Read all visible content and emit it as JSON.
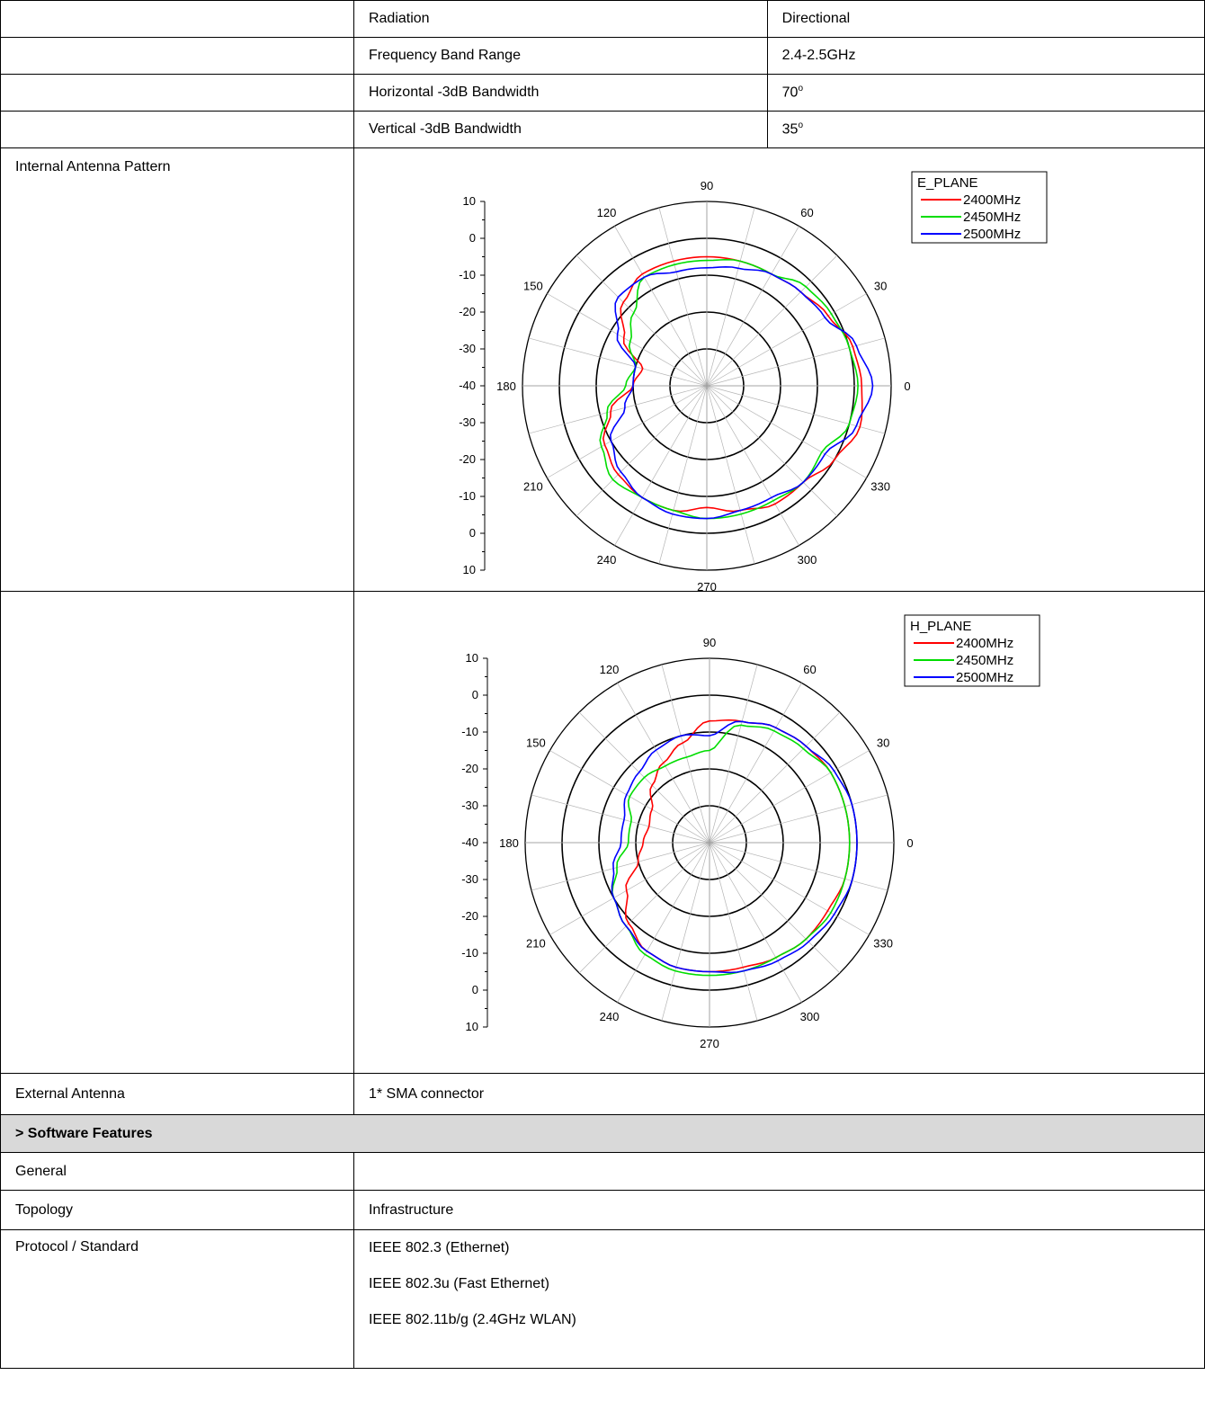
{
  "specs": [
    {
      "label": "",
      "name": "Radiation",
      "value": "Directional"
    },
    {
      "label": "",
      "name": "Frequency Band Range",
      "value": "2.4-2.5GHz"
    },
    {
      "label": "",
      "name": "Horizontal -3dB Bandwidth",
      "value": "70",
      "unit": "o"
    },
    {
      "label": "",
      "name": "Vertical -3dB Bandwidth",
      "value": "35",
      "unit": "o"
    }
  ],
  "internal_pattern_label": "Internal Antenna Pattern",
  "chart_data": [
    {
      "type": "polar",
      "legend_title": "E_PLANE",
      "legend_position": "top-right",
      "angle_labels": [
        "0",
        "30",
        "60",
        "90",
        "120",
        "150",
        "180",
        "210",
        "240",
        "270",
        "300",
        "330"
      ],
      "radial_ticks": [
        "10",
        "0",
        "-10",
        "-20",
        "-30",
        "-40",
        "-30",
        "-20",
        "-10",
        "0",
        "10"
      ],
      "rlim": [
        -40,
        10
      ],
      "grid": true,
      "series": [
        {
          "name": "2400MHz",
          "color": "#ff0000",
          "angles": [
            0,
            15,
            30,
            45,
            60,
            75,
            90,
            105,
            120,
            135,
            150,
            165,
            180,
            195,
            210,
            225,
            240,
            255,
            270,
            285,
            300,
            315,
            330,
            345
          ],
          "values": [
            2,
            1,
            -2,
            -4,
            -5,
            -5,
            -5,
            -5,
            -5,
            -8,
            -14,
            -22,
            -20,
            -13,
            -8,
            -6,
            -5,
            -5,
            -7,
            -5,
            -3,
            -3,
            0,
            3
          ]
        },
        {
          "name": "2450MHz",
          "color": "#00dd00",
          "angles": [
            0,
            15,
            30,
            45,
            60,
            75,
            90,
            105,
            120,
            135,
            150,
            165,
            180,
            195,
            210,
            225,
            240,
            255,
            270,
            285,
            300,
            315,
            330,
            345
          ],
          "values": [
            1,
            0,
            -1,
            -2,
            -5,
            -5,
            -6,
            -6,
            -6,
            -12,
            -16,
            -20,
            -18,
            -12,
            -7,
            -4,
            -5,
            -5,
            -4,
            -4,
            -4,
            -3,
            -4,
            0
          ]
        },
        {
          "name": "2500MHz",
          "color": "#0000ff",
          "angles": [
            0,
            15,
            30,
            45,
            60,
            75,
            90,
            105,
            120,
            135,
            150,
            165,
            180,
            195,
            210,
            225,
            240,
            255,
            270,
            285,
            300,
            315,
            330,
            345
          ],
          "values": [
            5,
            2,
            -3,
            -4,
            -5,
            -7,
            -8,
            -8,
            -6,
            -6,
            -12,
            -20,
            -20,
            -17,
            -10,
            -7,
            -5,
            -4,
            -4,
            -5,
            -5,
            -3,
            -3,
            2
          ]
        }
      ]
    },
    {
      "type": "polar",
      "legend_title": "H_PLANE",
      "legend_position": "top-right",
      "angle_labels": [
        "0",
        "30",
        "60",
        "90",
        "120",
        "150",
        "180",
        "210",
        "240",
        "270",
        "300",
        "330"
      ],
      "radial_ticks": [
        "10",
        "0",
        "-10",
        "-20",
        "-30",
        "-40",
        "-30",
        "-20",
        "-10",
        "0",
        "10"
      ],
      "rlim": [
        -40,
        10
      ],
      "grid": true,
      "series": [
        {
          "name": "2400MHz",
          "color": "#ff0000",
          "angles": [
            0,
            15,
            30,
            45,
            60,
            75,
            90,
            105,
            120,
            135,
            150,
            165,
            180,
            195,
            210,
            225,
            240,
            255,
            270,
            285,
            300,
            315,
            330,
            345
          ],
          "values": [
            -2,
            -2,
            -2,
            -3,
            -4,
            -6,
            -7,
            -12,
            -15,
            -18,
            -22,
            -23,
            -22,
            -20,
            -14,
            -9,
            -6,
            -5,
            -5,
            -5,
            -4,
            -3,
            -3,
            -2
          ]
        },
        {
          "name": "2450MHz",
          "color": "#00dd00",
          "angles": [
            0,
            15,
            30,
            45,
            60,
            75,
            90,
            105,
            120,
            135,
            150,
            165,
            180,
            195,
            210,
            225,
            240,
            255,
            270,
            285,
            300,
            315,
            330,
            345
          ],
          "values": [
            -2,
            -2,
            -2,
            -4,
            -5,
            -7,
            -15,
            -16,
            -16,
            -15,
            -15,
            -18,
            -18,
            -14,
            -10,
            -8,
            -5,
            -4,
            -4,
            -4,
            -4,
            -3,
            -2,
            -2
          ]
        },
        {
          "name": "2500MHz",
          "color": "#0000ff",
          "angles": [
            0,
            15,
            30,
            45,
            60,
            75,
            90,
            105,
            120,
            135,
            150,
            165,
            180,
            195,
            210,
            225,
            240,
            255,
            270,
            285,
            300,
            315,
            330,
            345
          ],
          "values": [
            0,
            0,
            -1,
            -3,
            -4,
            -6,
            -11,
            -10,
            -11,
            -13,
            -14,
            -16,
            -16,
            -13,
            -10,
            -8,
            -6,
            -5,
            -5,
            -4,
            -3,
            -2,
            -1,
            0
          ]
        }
      ]
    }
  ],
  "external_antenna": {
    "label": "External Antenna",
    "value": "1* SMA connector"
  },
  "section_title": "> Software Features",
  "general_label": "General",
  "topology": {
    "label": "Topology",
    "value": "Infrastructure"
  },
  "protocol": {
    "label": "Protocol / Standard",
    "items": [
      "IEEE 802.3 (Ethernet)",
      "IEEE 802.3u (Fast Ethernet)",
      "IEEE 802.11b/g (2.4GHz WLAN)"
    ]
  }
}
